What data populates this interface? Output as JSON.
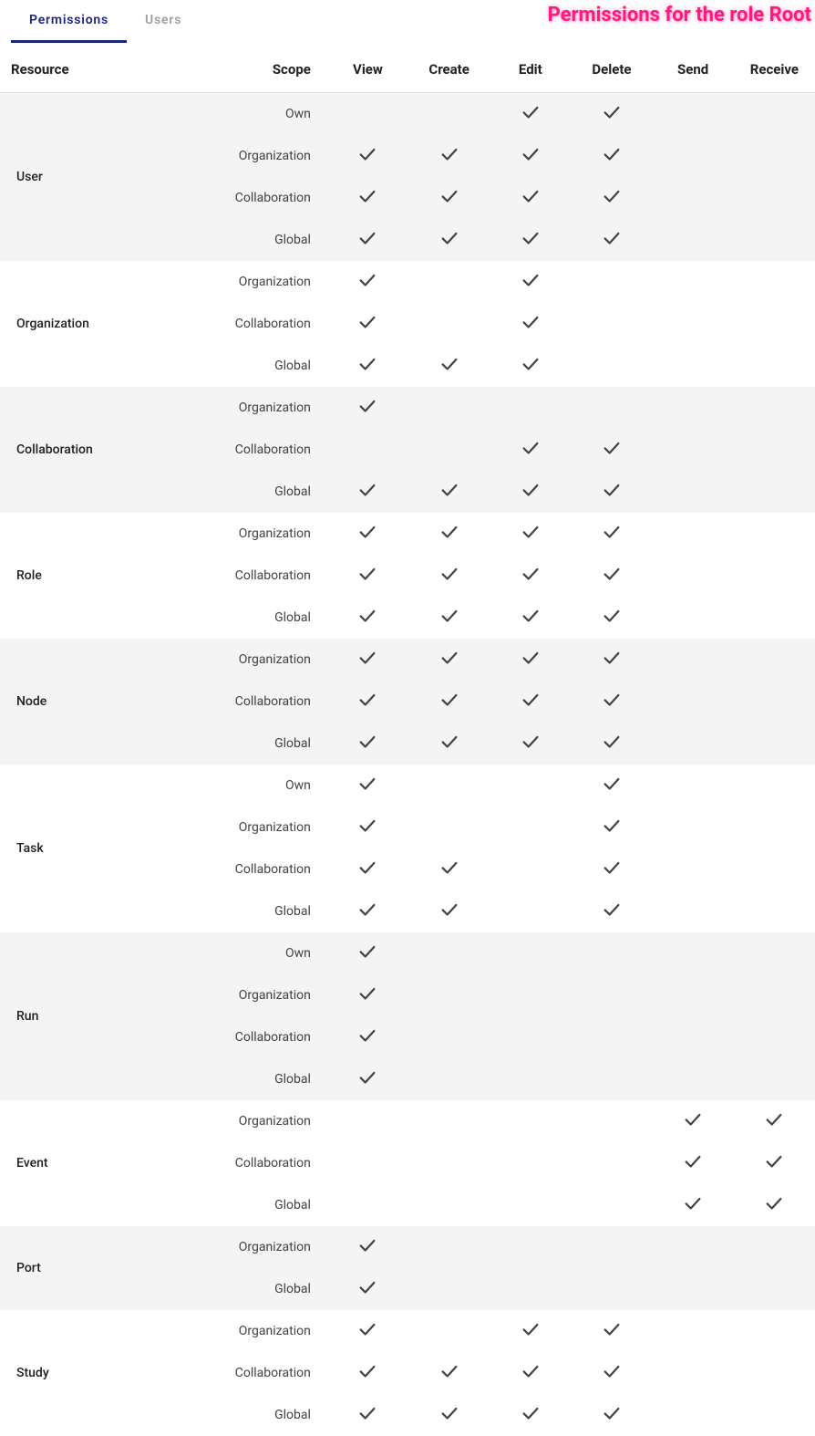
{
  "colors": {
    "active_tab": "#1a237e",
    "inactive_tab": "#9e9e9e",
    "title": "#ff1981",
    "row_alt_bg": "#f4f4f4",
    "row_bg": "#ffffff",
    "check": "#424242",
    "text": "#212121"
  },
  "tabs": {
    "permissions": "Permissions",
    "users": "Users",
    "active": "permissions"
  },
  "title": "Permissions for the role Root",
  "columns": {
    "resource": "Resource",
    "scope": "Scope",
    "ops": [
      "View",
      "Create",
      "Edit",
      "Delete",
      "Send",
      "Receive"
    ]
  },
  "groups": [
    {
      "resource": "User",
      "alt": true,
      "rows": [
        {
          "scope": "Own",
          "perms": [
            false,
            false,
            true,
            true,
            false,
            false
          ]
        },
        {
          "scope": "Organization",
          "perms": [
            true,
            true,
            true,
            true,
            false,
            false
          ]
        },
        {
          "scope": "Collaboration",
          "perms": [
            true,
            true,
            true,
            true,
            false,
            false
          ]
        },
        {
          "scope": "Global",
          "perms": [
            true,
            true,
            true,
            true,
            false,
            false
          ]
        }
      ]
    },
    {
      "resource": "Organization",
      "alt": false,
      "rows": [
        {
          "scope": "Organization",
          "perms": [
            true,
            false,
            true,
            false,
            false,
            false
          ]
        },
        {
          "scope": "Collaboration",
          "perms": [
            true,
            false,
            true,
            false,
            false,
            false
          ]
        },
        {
          "scope": "Global",
          "perms": [
            true,
            true,
            true,
            false,
            false,
            false
          ]
        }
      ]
    },
    {
      "resource": "Collaboration",
      "alt": true,
      "rows": [
        {
          "scope": "Organization",
          "perms": [
            true,
            false,
            false,
            false,
            false,
            false
          ]
        },
        {
          "scope": "Collaboration",
          "perms": [
            false,
            false,
            true,
            true,
            false,
            false
          ]
        },
        {
          "scope": "Global",
          "perms": [
            true,
            true,
            true,
            true,
            false,
            false
          ]
        }
      ]
    },
    {
      "resource": "Role",
      "alt": false,
      "rows": [
        {
          "scope": "Organization",
          "perms": [
            true,
            true,
            true,
            true,
            false,
            false
          ]
        },
        {
          "scope": "Collaboration",
          "perms": [
            true,
            true,
            true,
            true,
            false,
            false
          ]
        },
        {
          "scope": "Global",
          "perms": [
            true,
            true,
            true,
            true,
            false,
            false
          ]
        }
      ]
    },
    {
      "resource": "Node",
      "alt": true,
      "rows": [
        {
          "scope": "Organization",
          "perms": [
            true,
            true,
            true,
            true,
            false,
            false
          ]
        },
        {
          "scope": "Collaboration",
          "perms": [
            true,
            true,
            true,
            true,
            false,
            false
          ]
        },
        {
          "scope": "Global",
          "perms": [
            true,
            true,
            true,
            true,
            false,
            false
          ]
        }
      ]
    },
    {
      "resource": "Task",
      "alt": false,
      "rows": [
        {
          "scope": "Own",
          "perms": [
            true,
            false,
            false,
            true,
            false,
            false
          ]
        },
        {
          "scope": "Organization",
          "perms": [
            true,
            false,
            false,
            true,
            false,
            false
          ]
        },
        {
          "scope": "Collaboration",
          "perms": [
            true,
            true,
            false,
            true,
            false,
            false
          ]
        },
        {
          "scope": "Global",
          "perms": [
            true,
            true,
            false,
            true,
            false,
            false
          ]
        }
      ]
    },
    {
      "resource": "Run",
      "alt": true,
      "rows": [
        {
          "scope": "Own",
          "perms": [
            true,
            false,
            false,
            false,
            false,
            false
          ]
        },
        {
          "scope": "Organization",
          "perms": [
            true,
            false,
            false,
            false,
            false,
            false
          ]
        },
        {
          "scope": "Collaboration",
          "perms": [
            true,
            false,
            false,
            false,
            false,
            false
          ]
        },
        {
          "scope": "Global",
          "perms": [
            true,
            false,
            false,
            false,
            false,
            false
          ]
        }
      ]
    },
    {
      "resource": "Event",
      "alt": false,
      "rows": [
        {
          "scope": "Organization",
          "perms": [
            false,
            false,
            false,
            false,
            true,
            true
          ]
        },
        {
          "scope": "Collaboration",
          "perms": [
            false,
            false,
            false,
            false,
            true,
            true
          ]
        },
        {
          "scope": "Global",
          "perms": [
            false,
            false,
            false,
            false,
            true,
            true
          ]
        }
      ]
    },
    {
      "resource": "Port",
      "alt": true,
      "rows": [
        {
          "scope": "Organization",
          "perms": [
            true,
            false,
            false,
            false,
            false,
            false
          ]
        },
        {
          "scope": "Global",
          "perms": [
            true,
            false,
            false,
            false,
            false,
            false
          ]
        }
      ]
    },
    {
      "resource": "Study",
      "alt": false,
      "rows": [
        {
          "scope": "Organization",
          "perms": [
            true,
            false,
            true,
            true,
            false,
            false
          ]
        },
        {
          "scope": "Collaboration",
          "perms": [
            true,
            true,
            true,
            true,
            false,
            false
          ]
        },
        {
          "scope": "Global",
          "perms": [
            true,
            true,
            true,
            true,
            false,
            false
          ]
        }
      ]
    }
  ]
}
